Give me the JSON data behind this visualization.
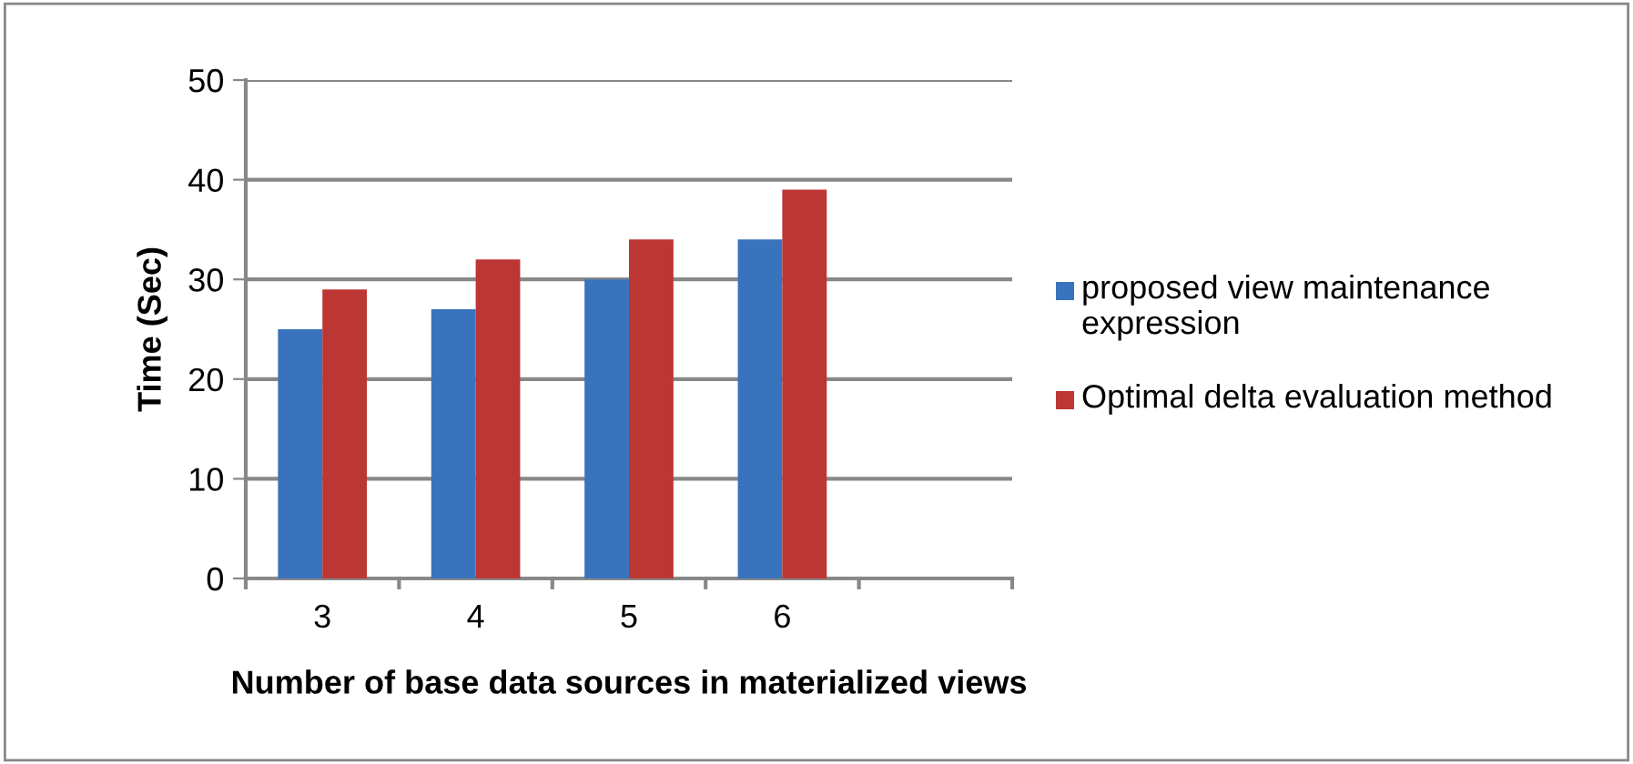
{
  "chart_data": {
    "type": "bar",
    "xlabel": "Number of base data sources in materialized views",
    "ylabel": "Time (Sec)",
    "categories": [
      "3",
      "4",
      "5",
      "6",
      null
    ],
    "series": [
      {
        "name": "proposed view maintenance expression",
        "color": "#3a73bd",
        "values": [
          25,
          27,
          30,
          34,
          null
        ]
      },
      {
        "name": "Optimal delta evaluation method",
        "color": "#bc3633",
        "values": [
          29,
          32,
          34,
          39,
          null
        ]
      }
    ],
    "ylim": [
      0,
      50
    ],
    "yticks": [
      0,
      10,
      20,
      30,
      40,
      50
    ],
    "grid": "y",
    "legend": "right"
  }
}
